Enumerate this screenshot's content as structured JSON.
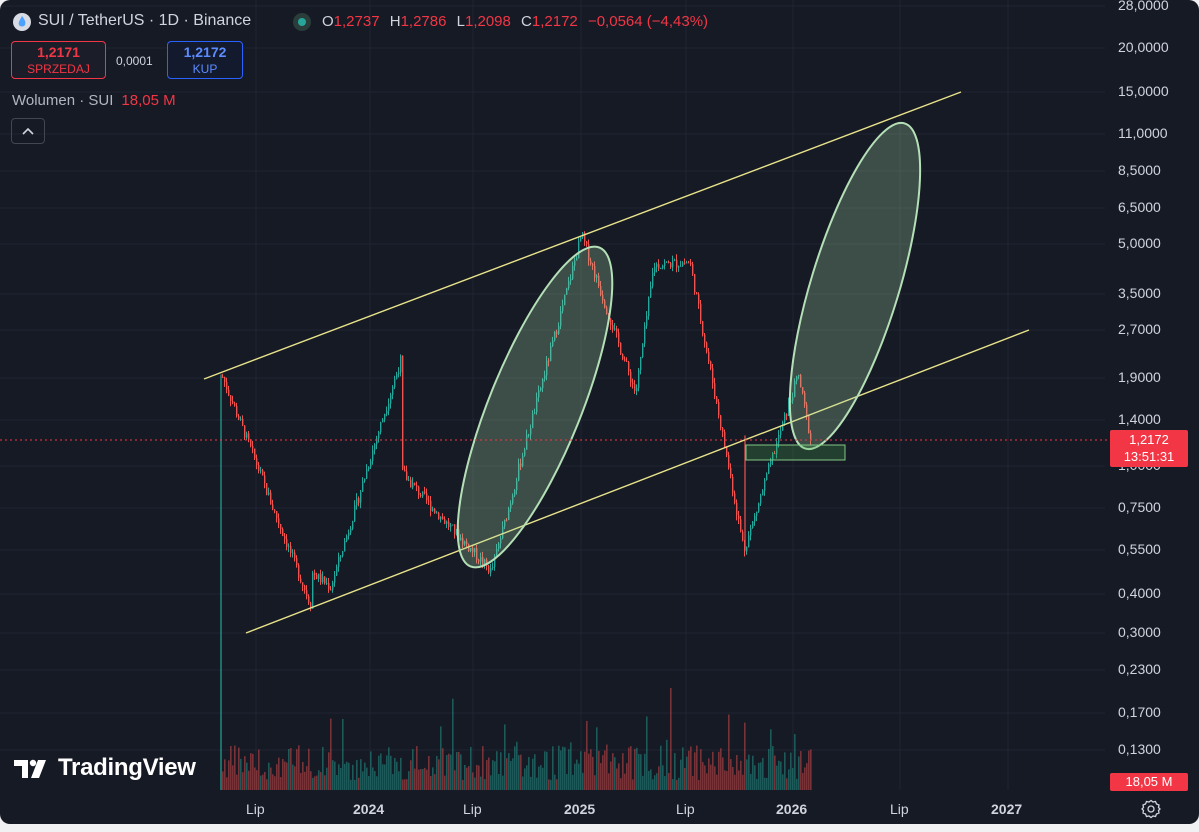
{
  "header": {
    "symbol": "SUI / TetherUS · 1D · Binance",
    "open_label": "O",
    "open": "1,2737",
    "high_label": "H",
    "high": "1,2786",
    "low_label": "L",
    "low": "1,2098",
    "close_label": "C",
    "close": "1,2172",
    "change": "−0,0564 (−4,43%)",
    "status_color": "#26a69a"
  },
  "trade": {
    "sell_price": "1,2171",
    "sell_label": "SPRZEDAJ",
    "spread": "0,0001",
    "buy_price": "1,2172",
    "buy_label": "KUP"
  },
  "volume_legend": {
    "label": "Wolumen · SUI",
    "value": "18,05 M"
  },
  "collapse_icon": "chevron-up-icon",
  "price_axis": {
    "scale": "log",
    "ticks": [
      "28,0000",
      "20,0000",
      "15,0000",
      "11,0000",
      "8,5000",
      "6,5000",
      "5,0000",
      "3,5000",
      "2,7000",
      "1,9000",
      "1,4000",
      "1,0000",
      "0,7500",
      "0,5500",
      "0,4000",
      "0,3000",
      "0,2300",
      "0,1700",
      "0,1300"
    ],
    "current_price": "1,2172",
    "countdown": "13:51:31",
    "volume_tag": "18,05 M"
  },
  "time_axis": {
    "labels": [
      {
        "text": "Lip",
        "bold": false
      },
      {
        "text": "2024",
        "bold": true
      },
      {
        "text": "Lip",
        "bold": false
      },
      {
        "text": "2025",
        "bold": true
      },
      {
        "text": "Lip",
        "bold": false
      },
      {
        "text": "2026",
        "bold": true
      },
      {
        "text": "Lip",
        "bold": false
      },
      {
        "text": "2027",
        "bold": true
      }
    ]
  },
  "branding": {
    "logo_text": "TradingView"
  },
  "colors": {
    "background": "#161a25",
    "up": "#26a69a",
    "down": "#ef5350",
    "trend_line": "#e8e38a",
    "ellipse_stroke": "#a5d6a7",
    "ellipse_fill": "#a5d6a7"
  },
  "chart_data": {
    "type": "candlestick",
    "scale": "log",
    "last_close": 1.2172,
    "key_prices": [
      {
        "date": "2023-05",
        "price": 1.95
      },
      {
        "date": "2023-10",
        "price": 0.37
      },
      {
        "date": "2024-03",
        "price": 2.18
      },
      {
        "date": "2024-08",
        "price": 0.47
      },
      {
        "date": "2025-01",
        "price": 5.35
      },
      {
        "date": "2025-04",
        "price": 1.7
      },
      {
        "date": "2025-05",
        "price": 4.3
      },
      {
        "date": "2025-07",
        "price": 4.4
      },
      {
        "date": "2025-10",
        "price": 0.55
      },
      {
        "date": "2026-01",
        "price": 1.95
      },
      {
        "date": "2026-02",
        "price": 1.2172
      }
    ],
    "annotations": [
      "upper trend line",
      "lower trend line",
      "ellipse 2024 rally",
      "projected ellipse 2026",
      "support box"
    ]
  }
}
